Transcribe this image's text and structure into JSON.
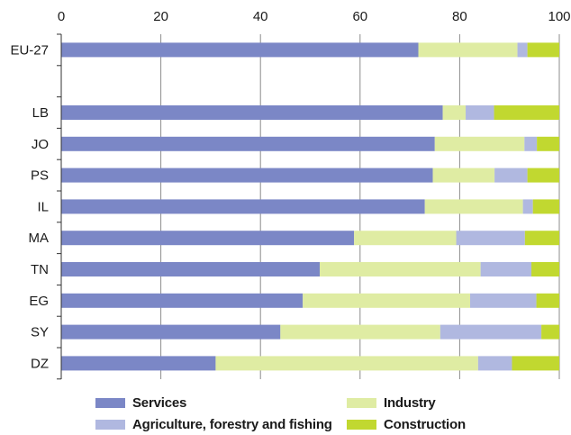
{
  "chart_data": {
    "type": "bar",
    "orientation": "horizontal",
    "stacked": true,
    "title": "",
    "xlabel": "",
    "ylabel": "",
    "xlim": [
      0,
      100
    ],
    "x_ticks": [
      "0",
      "20",
      "40",
      "60",
      "80",
      "100"
    ],
    "x_axis_position": "top",
    "grid": true,
    "legend_position": "bottom",
    "categories": [
      "EU-27",
      "",
      "LB",
      "JO",
      "PS",
      "IL",
      "MA",
      "TN",
      "EG",
      "SY",
      "DZ"
    ],
    "series": [
      {
        "name": "Services",
        "color": "#7b87c6",
        "values": [
          71.7,
          null,
          76.6,
          75.0,
          74.6,
          73.0,
          58.8,
          51.9,
          48.5,
          44.0,
          31.0
        ]
      },
      {
        "name": "Industry",
        "color": "#dfeca3",
        "values": [
          19.9,
          null,
          4.6,
          18.0,
          12.4,
          19.7,
          20.5,
          32.3,
          33.6,
          32.1,
          52.7
        ]
      },
      {
        "name": "Agriculture, forestry and fishing",
        "color": "#b0b8e0",
        "values": [
          2.0,
          null,
          5.7,
          2.5,
          6.6,
          2.0,
          13.8,
          10.2,
          13.3,
          20.3,
          6.8
        ]
      },
      {
        "name": "Construction",
        "color": "#c1d830",
        "values": [
          6.4,
          null,
          13.1,
          4.5,
          6.4,
          5.3,
          6.9,
          5.6,
          4.6,
          3.6,
          9.5
        ]
      }
    ]
  }
}
